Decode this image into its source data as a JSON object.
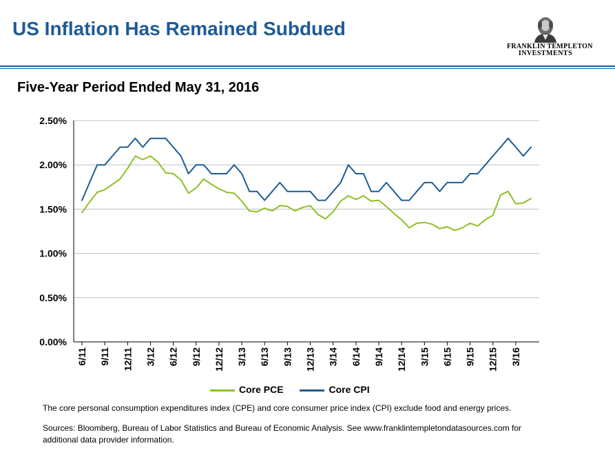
{
  "header": {
    "title": "US Inflation Has Remained Subdued",
    "logo_line1": "FRANKLIN TEMPLETON",
    "logo_line2": "INVESTMENTS"
  },
  "chart_data": {
    "type": "line",
    "title": "Five-Year Period Ended May 31, 2016",
    "xlabel": "",
    "ylabel": "",
    "ylim": [
      0,
      2.5
    ],
    "yticks": [
      "0.00%",
      "0.50%",
      "1.00%",
      "1.50%",
      "2.00%",
      "2.50%"
    ],
    "x": [
      "6/11",
      "7/11",
      "8/11",
      "9/11",
      "10/11",
      "11/11",
      "12/11",
      "1/12",
      "2/12",
      "3/12",
      "4/12",
      "5/12",
      "6/12",
      "7/12",
      "8/12",
      "9/12",
      "10/12",
      "11/12",
      "12/12",
      "1/13",
      "2/13",
      "3/13",
      "4/13",
      "5/13",
      "6/13",
      "7/13",
      "8/13",
      "9/13",
      "10/13",
      "11/13",
      "12/13",
      "1/14",
      "2/14",
      "3/14",
      "4/14",
      "5/14",
      "6/14",
      "7/14",
      "8/14",
      "9/14",
      "10/14",
      "11/14",
      "12/14",
      "1/15",
      "2/15",
      "3/15",
      "4/15",
      "5/15",
      "6/15",
      "7/15",
      "8/15",
      "9/15",
      "10/15",
      "11/15",
      "12/15",
      "1/16",
      "2/16",
      "3/16",
      "4/16",
      "5/16"
    ],
    "xtick_labels": [
      "6/11",
      "9/11",
      "12/11",
      "3/12",
      "6/12",
      "9/12",
      "12/12",
      "3/13",
      "6/13",
      "9/13",
      "12/13",
      "3/14",
      "6/14",
      "9/14",
      "12/14",
      "3/15",
      "6/15",
      "9/15",
      "12/15",
      "3/16"
    ],
    "grid": "horizontal",
    "legend_position": "bottom",
    "series": [
      {
        "name": "Core PCE",
        "color": "#8cbf26",
        "values": [
          1.46,
          1.58,
          1.69,
          1.72,
          1.78,
          1.84,
          1.96,
          2.1,
          2.06,
          2.1,
          2.03,
          1.91,
          1.9,
          1.83,
          1.68,
          1.74,
          1.84,
          1.78,
          1.73,
          1.69,
          1.68,
          1.59,
          1.48,
          1.47,
          1.51,
          1.48,
          1.54,
          1.53,
          1.48,
          1.52,
          1.54,
          1.44,
          1.39,
          1.47,
          1.59,
          1.65,
          1.61,
          1.65,
          1.59,
          1.6,
          1.53,
          1.45,
          1.38,
          1.29,
          1.34,
          1.35,
          1.33,
          1.28,
          1.3,
          1.26,
          1.29,
          1.34,
          1.31,
          1.38,
          1.43,
          1.66,
          1.7,
          1.56,
          1.57,
          1.62
        ]
      },
      {
        "name": "Core CPI",
        "color": "#1b5c94",
        "values": [
          1.6,
          1.8,
          2.0,
          2.0,
          2.1,
          2.2,
          2.2,
          2.3,
          2.2,
          2.3,
          2.3,
          2.3,
          2.2,
          2.1,
          1.9,
          2.0,
          2.0,
          1.9,
          1.9,
          1.9,
          2.0,
          1.9,
          1.7,
          1.7,
          1.6,
          1.7,
          1.8,
          1.7,
          1.7,
          1.7,
          1.7,
          1.6,
          1.6,
          1.7,
          1.8,
          2.0,
          1.9,
          1.9,
          1.7,
          1.7,
          1.8,
          1.7,
          1.6,
          1.6,
          1.7,
          1.8,
          1.8,
          1.7,
          1.8,
          1.8,
          1.8,
          1.9,
          1.9,
          2.0,
          2.1,
          2.2,
          2.3,
          2.2,
          2.1,
          2.2
        ]
      }
    ]
  },
  "footer": {
    "note": "The core personal consumption expenditures index (CPE) and core consumer price index (CPI) exclude food and energy prices.",
    "sources": "Sources: Bloomberg, Bureau of Labor Statistics and Bureau of Economic Analysis. See www.franklintempletondatasources.com for additional data provider information."
  }
}
